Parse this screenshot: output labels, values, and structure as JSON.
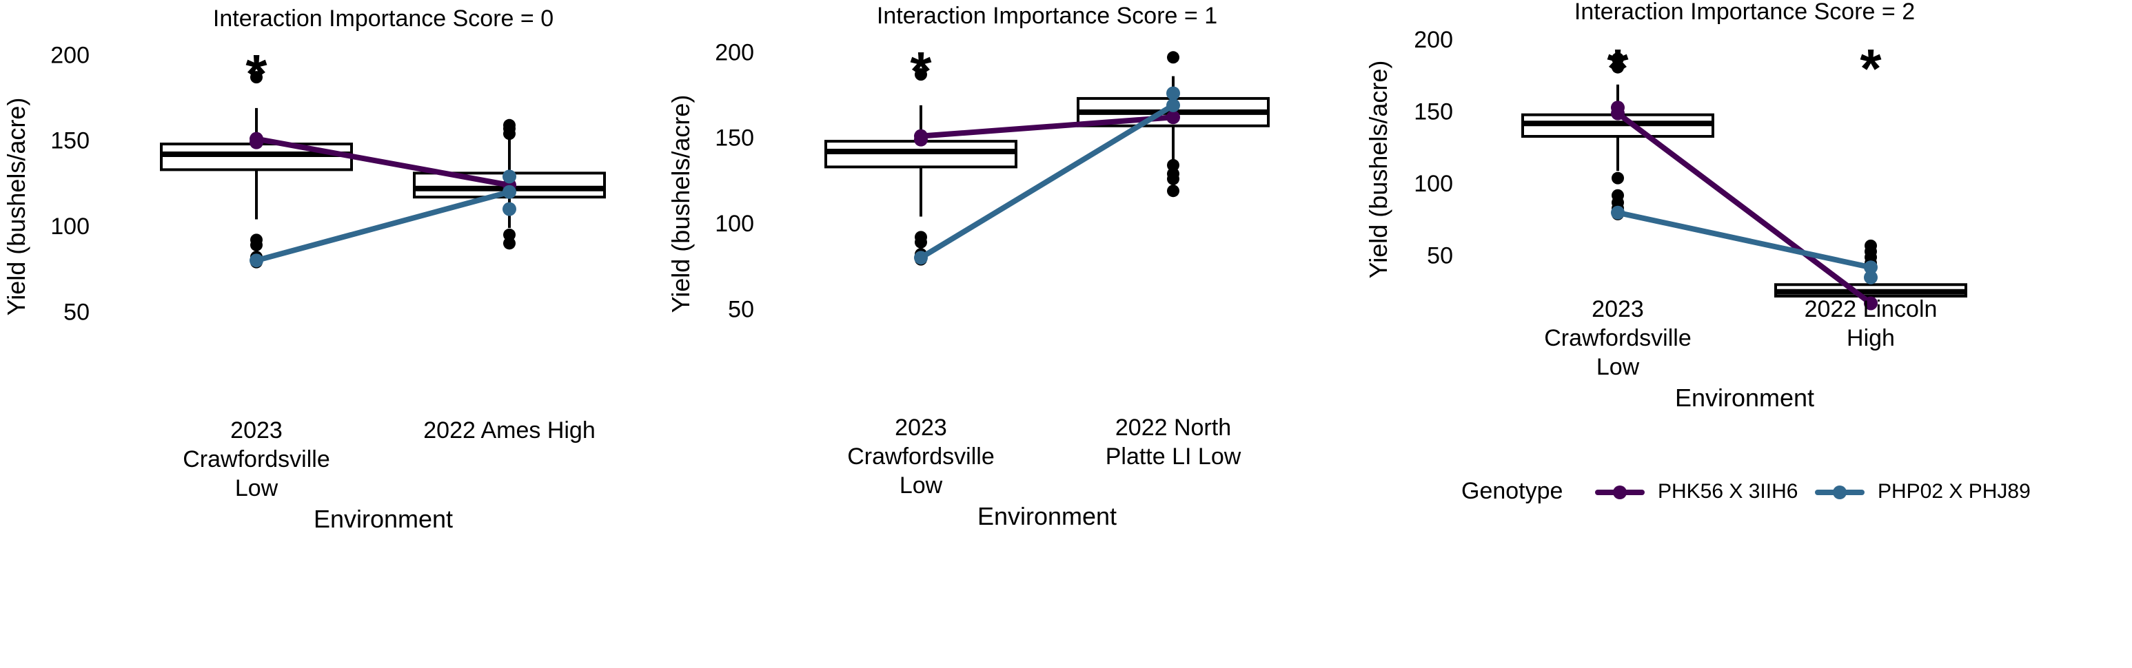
{
  "chart_data": [
    {
      "type": "box",
      "title": "Interaction Importance Score = 0",
      "xlabel": "Environment",
      "ylabel": "Yield (bushels/acre)",
      "ylim": [
        30,
        215
      ],
      "yticks": [
        50,
        100,
        150,
        200
      ],
      "categories": [
        [
          "2023",
          "Crawfordsville",
          "Low"
        ],
        [
          "2022 Ames High"
        ]
      ],
      "significance": [
        "*",
        ""
      ],
      "boxes": [
        {
          "whisker_low": 105,
          "q1": 134,
          "median": 143,
          "q3": 149,
          "whisker_high": 170,
          "outliers": [
            80,
            83,
            90,
            93,
            188
          ]
        },
        {
          "whisker_low": 100,
          "q1": 118,
          "median": 123,
          "q3": 132,
          "whisker_high": 152,
          "outliers": [
            91,
            96,
            155,
            158,
            160
          ]
        }
      ],
      "series": [
        {
          "name": "PHK56 X 3IIH6",
          "color": "#440154",
          "values": [
            152,
            125
          ]
        },
        {
          "name": "PHP02 X PHJ89",
          "color": "#31688e",
          "values": [
            81,
            121
          ]
        }
      ],
      "extra_points": [
        {
          "category": 1,
          "value": 111,
          "color": "#31688e"
        },
        {
          "category": 1,
          "value": 130,
          "color": "#31688e"
        },
        {
          "category": 0,
          "value": 150,
          "color": "#440154"
        }
      ]
    },
    {
      "type": "box",
      "title": "Interaction Importance Score = 1",
      "xlabel": "Environment",
      "ylabel": "Yield (bushels/acre)",
      "ylim": [
        30,
        215
      ],
      "yticks": [
        50,
        100,
        150,
        200
      ],
      "categories": [
        [
          "2023",
          "Crawfordsville",
          "Low"
        ],
        [
          "2022 North",
          "Platte LI Low"
        ]
      ],
      "significance": [
        "*",
        ""
      ],
      "boxes": [
        {
          "whisker_low": 105,
          "q1": 134,
          "median": 143,
          "q3": 149,
          "whisker_high": 170,
          "outliers": [
            80,
            83,
            90,
            93,
            188
          ]
        },
        {
          "whisker_low": 137,
          "q1": 158,
          "median": 166,
          "q3": 174,
          "whisker_high": 187,
          "outliers": [
            120,
            127,
            130,
            135,
            198
          ]
        }
      ],
      "series": [
        {
          "name": "PHK56 X 3IIH6",
          "color": "#440154",
          "values": [
            152,
            163
          ]
        },
        {
          "name": "PHP02 X PHJ89",
          "color": "#31688e",
          "values": [
            81,
            170
          ]
        }
      ],
      "extra_points": [
        {
          "category": 1,
          "value": 177,
          "color": "#31688e"
        },
        {
          "category": 0,
          "value": 150,
          "color": "#440154"
        }
      ]
    },
    {
      "type": "box",
      "title": "Interaction Importance Score = 2",
      "xlabel": "Environment",
      "ylabel": "Yield (bushels/acre)",
      "ylim": [
        12,
        212
      ],
      "yticks": [
        50,
        100,
        150,
        200
      ],
      "categories": [
        [
          "2023",
          "Crawfordsville",
          "Low"
        ],
        [
          "2022 Lincoln",
          "High"
        ]
      ],
      "significance": [
        "*",
        "*"
      ],
      "boxes": [
        {
          "whisker_low": 110,
          "q1": 134,
          "median": 143,
          "q3": 149,
          "whisker_high": 170,
          "outliers": [
            80,
            84,
            88,
            93,
            105,
            182,
            188
          ]
        },
        {
          "whisker_low": 18,
          "q1": 23,
          "median": 26,
          "q3": 31,
          "whisker_high": 42,
          "outliers": [
            46,
            50,
            54,
            58
          ]
        }
      ],
      "series": [
        {
          "name": "PHK56 X 3IIH6",
          "color": "#440154",
          "values": [
            150,
            18
          ]
        },
        {
          "name": "PHP02 X PHJ89",
          "color": "#31688e",
          "values": [
            81,
            43
          ]
        }
      ],
      "extra_points": [
        {
          "category": 0,
          "value": 154,
          "color": "#440154"
        },
        {
          "category": 1,
          "value": 36,
          "color": "#31688e"
        }
      ]
    }
  ],
  "legend": {
    "title": "Genotype",
    "entries": [
      {
        "label": "PHK56 X 3IIH6",
        "color": "#440154"
      },
      {
        "label": "PHP02 X PHJ89",
        "color": "#31688e"
      }
    ]
  }
}
